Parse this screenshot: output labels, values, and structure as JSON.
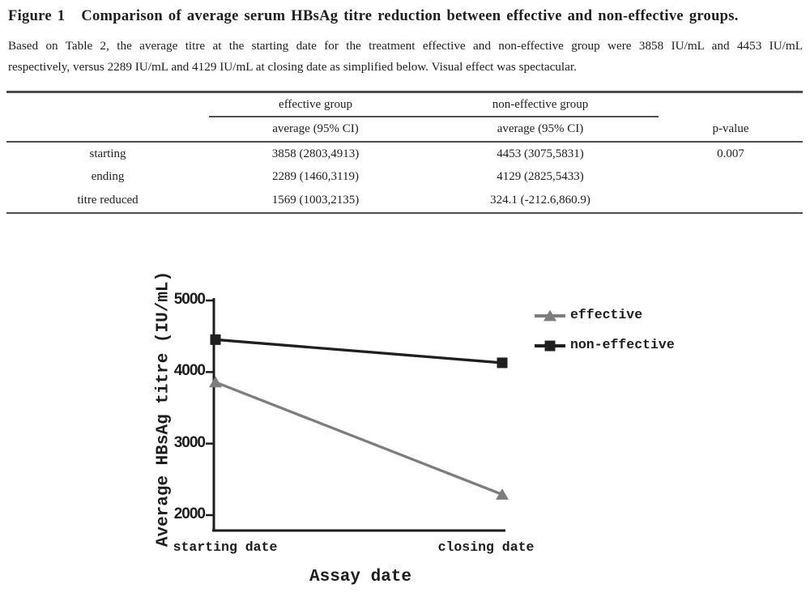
{
  "caption": {
    "label": "Figure 1",
    "title": "Comparison of average serum HBsAg titre reduction between effective and non-effective groups.",
    "description_lines": [
      "Based on Table 2, the average titre at the starting date for the treatment effective and non-effective group were 3858 IU/mL and 4453 IU/mL",
      "respectively, versus 2289 IU/mL and 4129 IU/mL at closing date as simplified below. Visual effect was spectacular."
    ]
  },
  "table": {
    "group_headers": [
      "effective group",
      "non-effective group"
    ],
    "sub_headers": [
      "average (95% CI)",
      "average (95% CI)",
      "p-value"
    ],
    "rows": [
      {
        "label": "starting",
        "effective": "3858 (2803,4913)",
        "non_effective": "4453 (3075,5831)",
        "p_value": "0.007"
      },
      {
        "label": "ending",
        "effective": "2289 (1460,3119)",
        "non_effective": "4129 (2825,5433)",
        "p_value": ""
      },
      {
        "label": "titre reduced",
        "effective": "1569 (1003,2135)",
        "non_effective": "324.1 (-212.6,860.9)",
        "p_value": ""
      }
    ]
  },
  "chart_data": {
    "type": "line",
    "title": "",
    "categories": [
      "starting date",
      "closing date"
    ],
    "series": [
      {
        "name": "effective",
        "values": [
          3858,
          2289
        ],
        "color": "#7d7d7d",
        "marker": "triangle"
      },
      {
        "name": "non-effective",
        "values": [
          4453,
          4129
        ],
        "color": "#1f1f1f",
        "marker": "square"
      }
    ],
    "xlabel": "Assay date",
    "ylabel": "Average HBsAg titre (IU/mL)",
    "yticks": [
      5000,
      4000,
      3000,
      2000
    ],
    "ylim": [
      1780,
      5000
    ],
    "grid": false,
    "legend_position": "top-right"
  },
  "colors": {
    "text": "#1e1e1e",
    "table_rule": "#4e4e4e",
    "axis": "#1c1c1c",
    "effective_line": "#7d7d7d",
    "non_effective_line": "#1f1f1f"
  }
}
